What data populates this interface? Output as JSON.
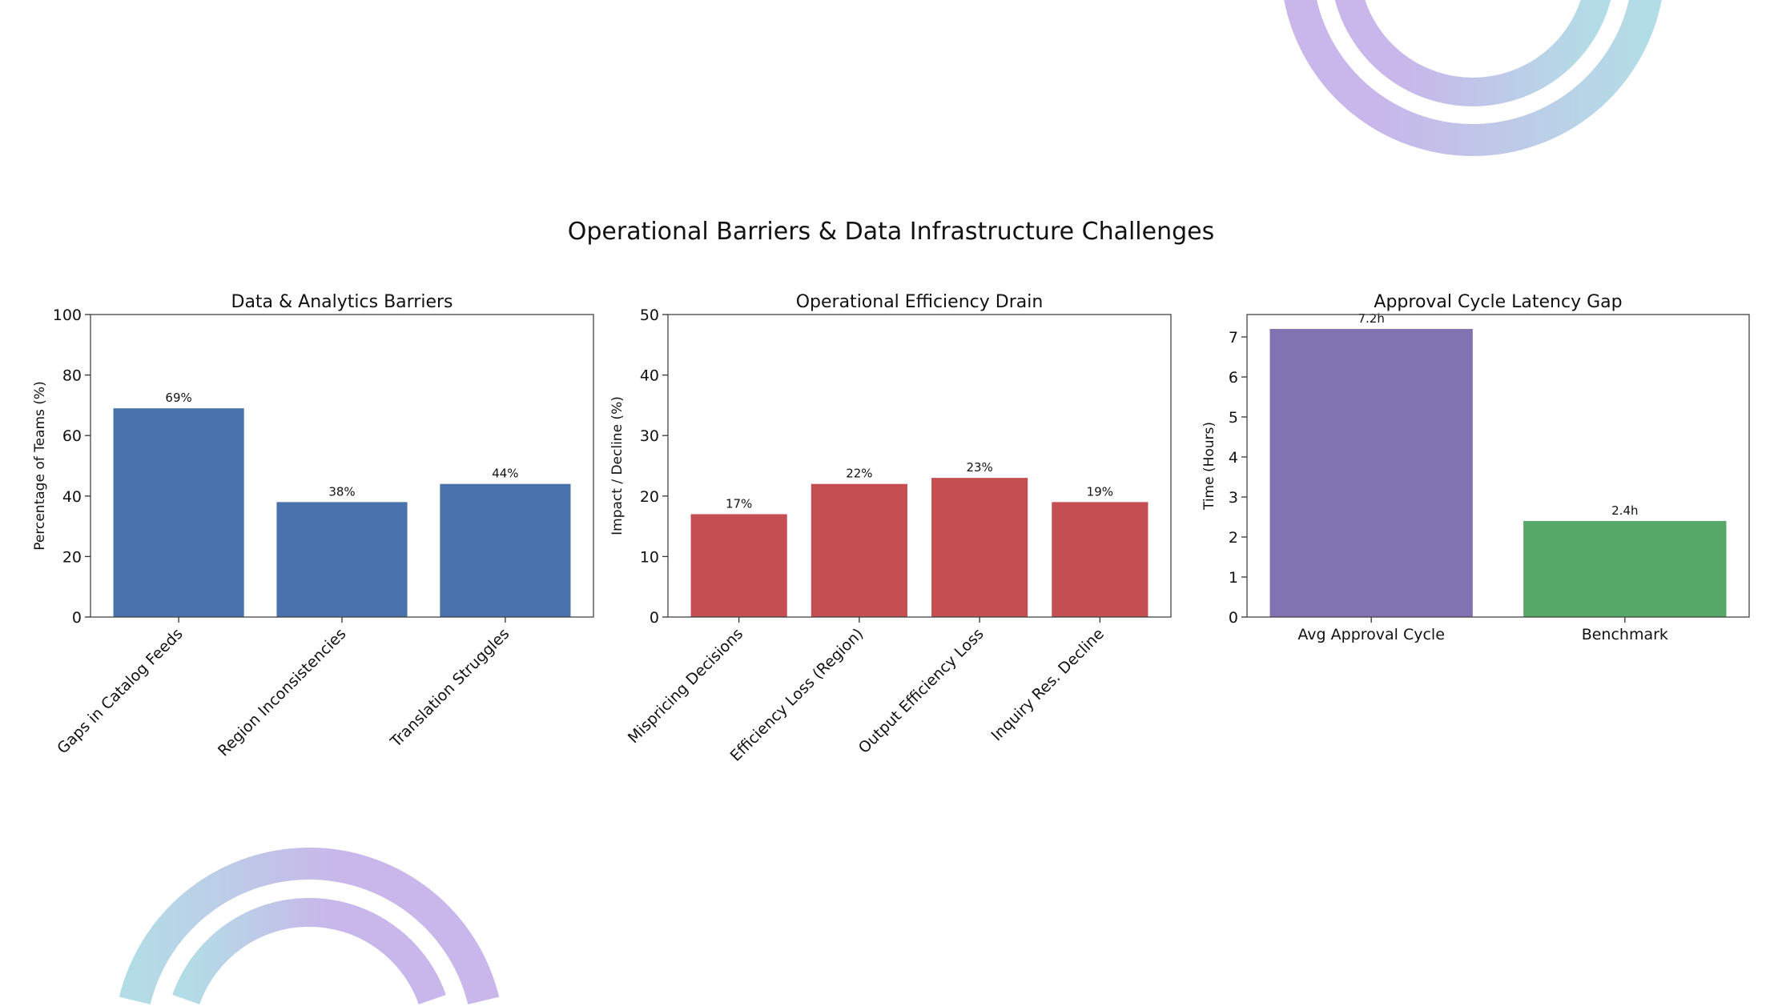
{
  "title": "Operational Barriers & Data Infrastructure Challenges",
  "decoration": {
    "ring_colors": [
      "#c9b6ea",
      "#b3dde6"
    ]
  },
  "chart_data": [
    {
      "type": "bar",
      "title": "Data & Analytics Barriers",
      "xlabel": "",
      "ylabel": "Percentage of Teams (%)",
      "categories": [
        "Gaps in Catalog Feeds",
        "Region Inconsistencies",
        "Translation Struggles"
      ],
      "values": [
        69,
        38,
        44
      ],
      "data_labels": [
        "69%",
        "38%",
        "44%"
      ],
      "ylim": [
        0,
        100
      ],
      "yticks": [
        0,
        20,
        40,
        60,
        80,
        100
      ],
      "colors": [
        "#4a72ad",
        "#4a72ad",
        "#4a72ad"
      ],
      "rotate_labels": true,
      "grid": false
    },
    {
      "type": "bar",
      "title": "Operational Efficiency Drain",
      "xlabel": "",
      "ylabel": "Impact / Decline (%)",
      "categories": [
        "Mispricing Decisions",
        "Efficiency Loss (Region)",
        "Output Efficiency Loss",
        "Inquiry Res. Decline"
      ],
      "values": [
        17,
        22,
        23,
        19
      ],
      "data_labels": [
        "17%",
        "22%",
        "23%",
        "19%"
      ],
      "ylim": [
        0,
        50
      ],
      "yticks": [
        0,
        10,
        20,
        30,
        40,
        50
      ],
      "colors": [
        "#c44e52",
        "#c44e52",
        "#c44e52",
        "#c44e52"
      ],
      "rotate_labels": true,
      "grid": false
    },
    {
      "type": "bar",
      "title": "Approval Cycle Latency Gap",
      "xlabel": "",
      "ylabel": "Time (Hours)",
      "categories": [
        "Avg Approval Cycle",
        "Benchmark"
      ],
      "values": [
        7.2,
        2.4
      ],
      "data_labels": [
        "7.2h",
        "2.4h"
      ],
      "ylim": [
        0,
        7.56
      ],
      "yticks": [
        0,
        1,
        2,
        3,
        4,
        5,
        6,
        7
      ],
      "colors": [
        "#8172b2",
        "#55a868"
      ],
      "rotate_labels": false,
      "grid": false
    }
  ]
}
